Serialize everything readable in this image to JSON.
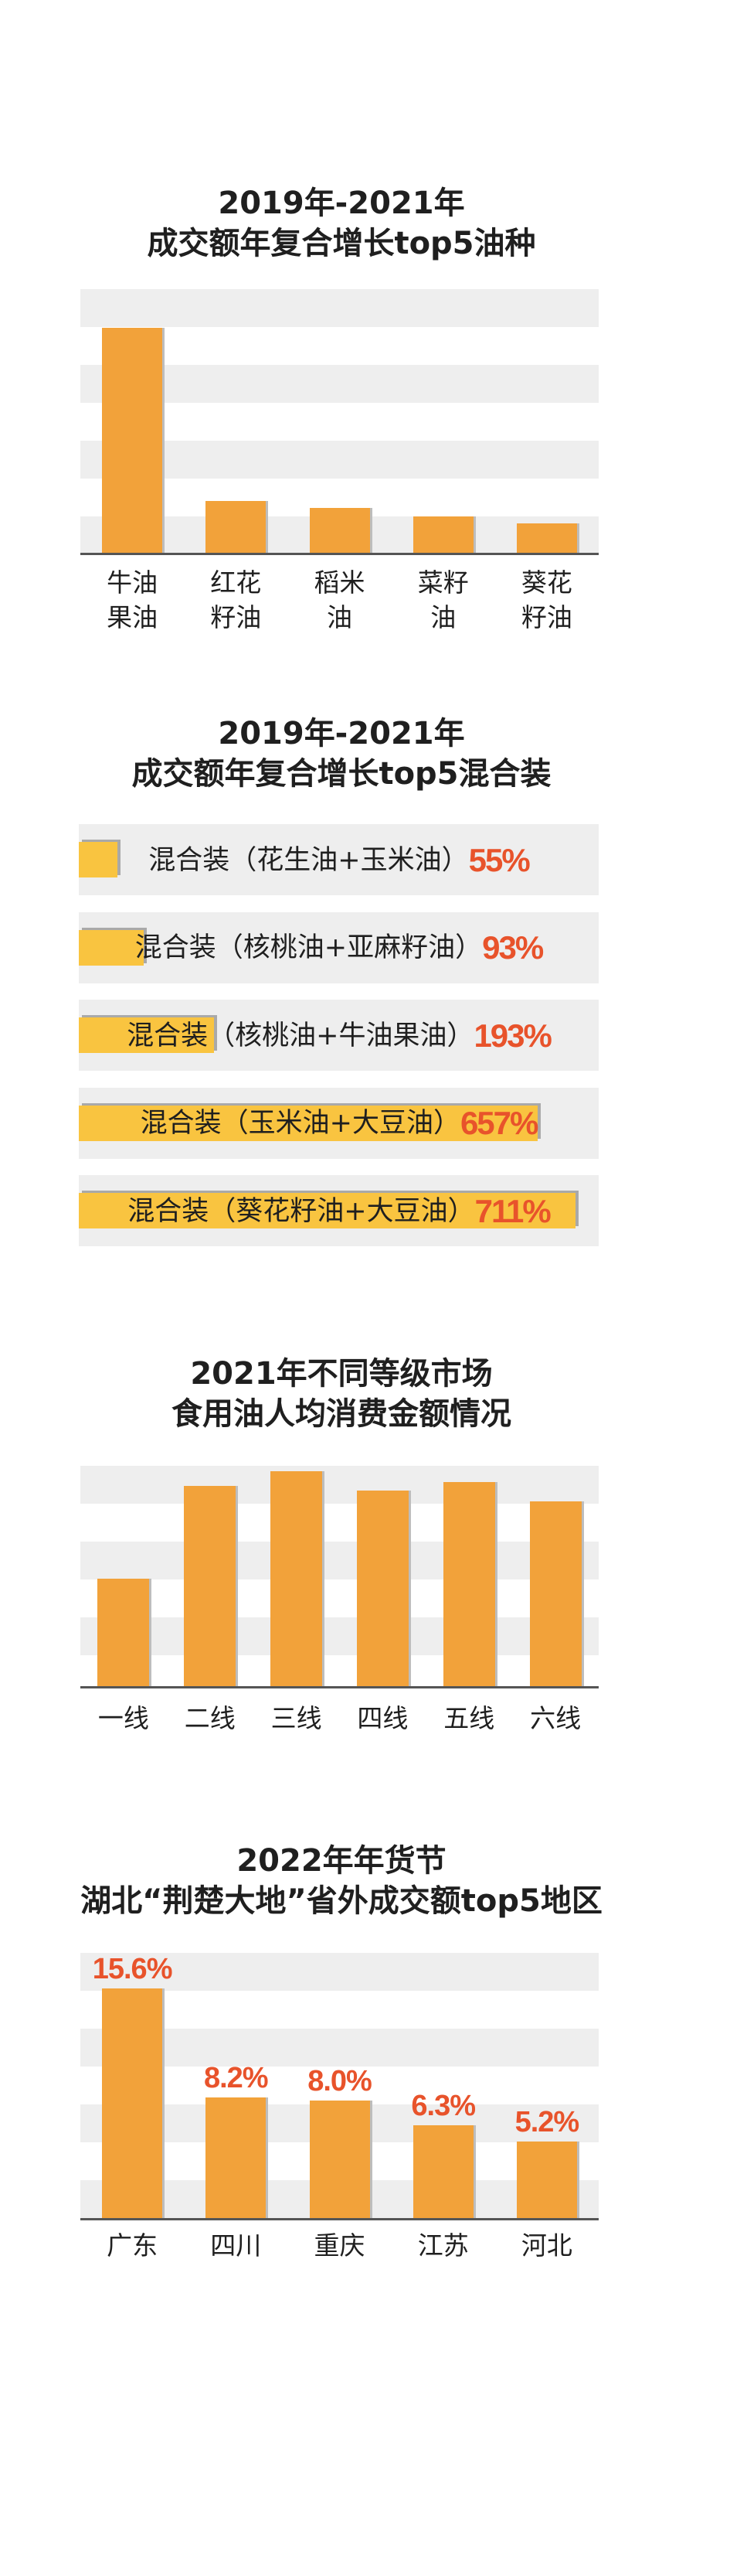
{
  "colors": {
    "bar_orange": "#F2A23A",
    "bar_yellow": "#F9C440",
    "value_red": "#E8532B",
    "grid_band": "#EEEEEE",
    "axis_line": "#555555",
    "text": "#1F1F1F"
  },
  "chart_data": [
    {
      "type": "bar",
      "orientation": "vertical",
      "title": "2019年-2021年",
      "subtitle": "成交额年复合增长top5油种",
      "categories": [
        "牛油\n果油",
        "红花\n籽油",
        "稻米\n油",
        "菜籽\n油",
        "葵花\n籽油"
      ],
      "values": [
        100,
        23,
        20,
        16,
        13
      ],
      "ylim": [
        0,
        117
      ],
      "grid": true
    },
    {
      "type": "bar",
      "orientation": "horizontal",
      "title": "2019年-2021年",
      "subtitle": "成交额年复合增长top5混合装",
      "categories": [
        "混合装（花生油+玉米油）",
        "混合装（核桃油+亚麻籽油）",
        "混合装（核桃油+牛油果油）",
        "混合装（玉米油+大豆油）",
        "混合装（葵花籽油+大豆油）"
      ],
      "values": [
        55,
        93,
        193,
        657,
        711
      ],
      "value_labels": [
        "55%",
        "93%",
        "193%",
        "657%",
        "711%"
      ],
      "xlim": [
        0,
        744
      ],
      "grid": true
    },
    {
      "type": "bar",
      "orientation": "vertical",
      "title": "2021年不同等级市场",
      "subtitle": "食用油人均消费金额情况",
      "categories": [
        "一线",
        "二线",
        "三线",
        "四线",
        "五线",
        "六线"
      ],
      "values": [
        50,
        93,
        100,
        91,
        95,
        86
      ],
      "ylim": [
        0,
        102.5
      ],
      "grid": true
    },
    {
      "type": "bar",
      "orientation": "vertical",
      "title": "2022年年货节",
      "subtitle": "湖北“荆楚大地”省外成交额top5地区",
      "categories": [
        "广东",
        "四川",
        "重庆",
        "江苏",
        "河北"
      ],
      "values": [
        15.6,
        8.2,
        8.0,
        6.3,
        5.2
      ],
      "value_labels": [
        "15.6%",
        "8.2%",
        "8.0%",
        "6.3%",
        "5.2%"
      ],
      "ylim": [
        0,
        18
      ],
      "grid": true
    }
  ]
}
